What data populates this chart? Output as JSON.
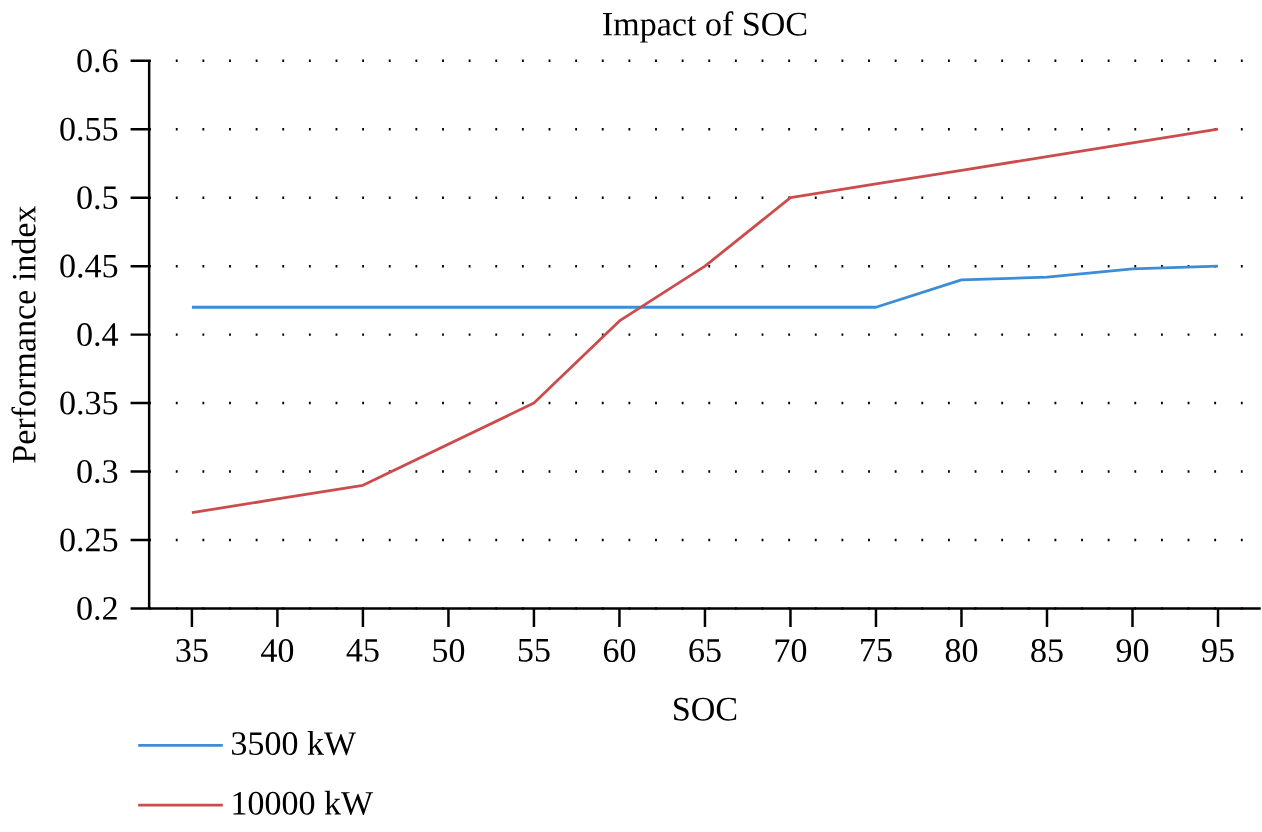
{
  "chart_data": {
    "type": "line",
    "title": "Impact of SOC",
    "xlabel": "SOC",
    "ylabel": "Performance index",
    "categories": [
      "35",
      "40",
      "45",
      "50",
      "55",
      "60",
      "65",
      "70",
      "75",
      "80",
      "85",
      "90",
      "95"
    ],
    "series": [
      {
        "name": "3500 kW",
        "color": "#3c8dd6",
        "values": [
          0.42,
          0.42,
          0.42,
          0.42,
          0.42,
          0.42,
          0.42,
          0.42,
          0.42,
          0.44,
          0.442,
          0.448,
          0.45
        ]
      },
      {
        "name": "10000 kW",
        "color": "#cc4c4c",
        "values": [
          0.27,
          0.28,
          0.29,
          0.32,
          0.35,
          0.41,
          0.45,
          0.5,
          0.51,
          0.52,
          0.53,
          0.54,
          0.55
        ]
      }
    ],
    "ylim": [
      0.2,
      0.6
    ],
    "yticks": [
      0.2,
      0.25,
      0.3,
      0.35,
      0.4,
      0.45,
      0.5,
      0.55,
      0.6
    ],
    "grid": "y",
    "legend": "bottom left",
    "line_style": "solid",
    "marker": "none"
  }
}
